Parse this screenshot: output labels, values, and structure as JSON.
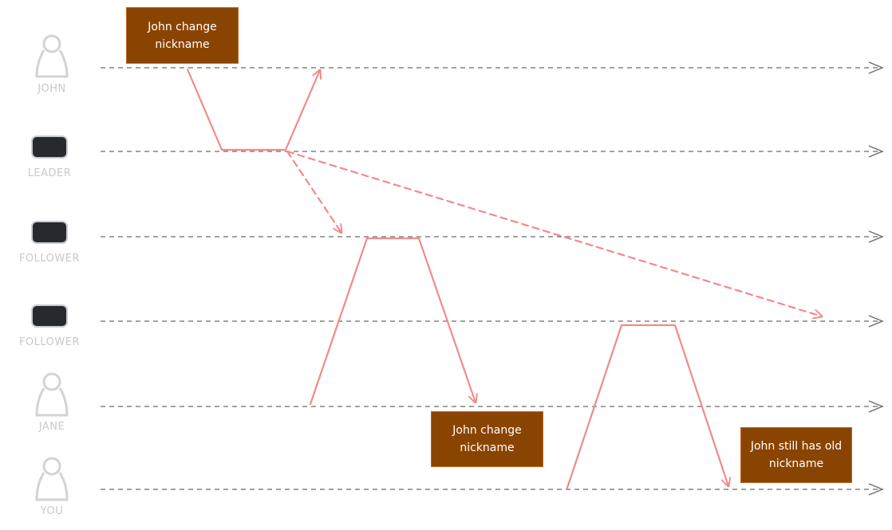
{
  "actors": [
    {
      "label": "JOHN",
      "icon": "person-icon"
    },
    {
      "label": "LEADER",
      "icon": "server-icon"
    },
    {
      "label": "FOLLOWER",
      "icon": "server-icon"
    },
    {
      "label": "FOLLOWER",
      "icon": "server-icon"
    },
    {
      "label": "JANE",
      "icon": "person-icon"
    },
    {
      "label": "YOU",
      "icon": "person-icon"
    }
  ],
  "notes": {
    "john_write": "John change nickname",
    "jane_read": "John change nickname",
    "you_read": "John still has old nickname"
  },
  "colors": {
    "timeline": "#6b6b6b",
    "message": "#f28a8a",
    "note_fill": "#8a4402",
    "actor": "#d0d0d0",
    "server": "#26292e"
  }
}
